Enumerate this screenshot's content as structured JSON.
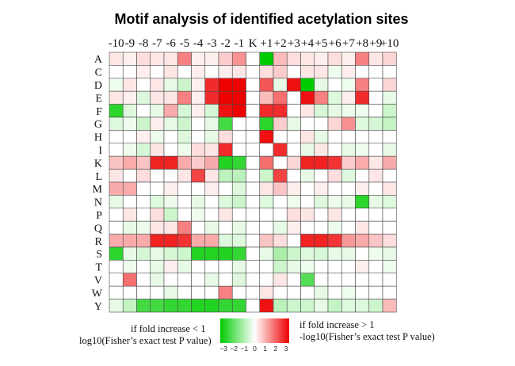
{
  "chart_data": {
    "type": "heatmap",
    "title": "Motif analysis of identified acetylation sites",
    "columns": [
      "-10",
      "-9",
      "-8",
      "-7",
      "-6",
      "-5",
      "-4",
      "-3",
      "-2",
      "-1",
      "K",
      "+1",
      "+2",
      "+3",
      "+4",
      "+5",
      "+6",
      "+7",
      "+8",
      "+9",
      "+10"
    ],
    "rows": [
      "A",
      "C",
      "D",
      "E",
      "F",
      "G",
      "H",
      "I",
      "K",
      "L",
      "M",
      "N",
      "P",
      "Q",
      "R",
      "S",
      "T",
      "V",
      "W",
      "Y"
    ],
    "values": [
      [
        0.3,
        0.2,
        0.4,
        0.3,
        0.3,
        1.5,
        0.2,
        0.2,
        0.6,
        1.3,
        null,
        -3.0,
        0.8,
        0.4,
        0.3,
        0.2,
        0.4,
        0.2,
        1.5,
        0.3,
        0.5
      ],
      [
        0.0,
        0.0,
        0.2,
        0.0,
        0.3,
        0.0,
        0.2,
        0.0,
        0.2,
        0.3,
        null,
        0.4,
        0.6,
        0.0,
        0.3,
        0.3,
        -0.2,
        0.2,
        0.0,
        0.0,
        0.0
      ],
      [
        -0.2,
        0.3,
        0.0,
        0.3,
        -0.3,
        -0.6,
        0.2,
        2.5,
        3.0,
        3.0,
        null,
        2.0,
        -0.3,
        2.8,
        -3.0,
        -0.3,
        0.0,
        -0.2,
        1.5,
        0.0,
        0.5
      ],
      [
        0.3,
        0.2,
        -0.4,
        0.3,
        0.3,
        1.5,
        0.2,
        2.5,
        3.0,
        3.0,
        null,
        0.8,
        1.7,
        0.0,
        2.8,
        1.5,
        -0.4,
        0.2,
        2.5,
        0.0,
        -0.3
      ],
      [
        -2.5,
        -0.4,
        0.0,
        -0.3,
        1.0,
        -0.5,
        0.2,
        -0.5,
        2.8,
        3.0,
        null,
        2.5,
        2.5,
        0.0,
        0.3,
        -0.5,
        -0.3,
        -0.2,
        -0.2,
        0.0,
        -0.6
      ],
      [
        -0.4,
        -0.2,
        -0.6,
        0.2,
        -0.3,
        -0.6,
        0.0,
        -0.3,
        -2.2,
        0.0,
        null,
        -2.5,
        0.6,
        -0.3,
        0.0,
        0.0,
        0.5,
        1.3,
        -0.4,
        -0.5,
        -0.7
      ],
      [
        0.0,
        0.0,
        0.2,
        -0.2,
        0.0,
        -0.4,
        0.0,
        -0.3,
        0.4,
        0.0,
        null,
        2.8,
        0.0,
        0.0,
        0.3,
        -0.3,
        0.0,
        0.0,
        0.0,
        0.0,
        0.0
      ],
      [
        0.0,
        -0.2,
        -0.5,
        0.3,
        0.0,
        -0.2,
        0.4,
        0.3,
        2.5,
        0.0,
        null,
        0.0,
        2.5,
        0.0,
        -0.3,
        0.3,
        0.0,
        -0.3,
        -0.2,
        0.0,
        -0.3
      ],
      [
        0.7,
        1.0,
        0.7,
        2.6,
        2.6,
        1.0,
        0.6,
        1.0,
        -2.6,
        -2.4,
        null,
        1.7,
        0.0,
        0.5,
        2.6,
        2.6,
        2.4,
        0.6,
        1.0,
        0.3,
        1.0
      ],
      [
        0.3,
        0.0,
        0.4,
        0.0,
        0.0,
        0.3,
        2.2,
        0.3,
        -0.8,
        -0.8,
        null,
        -0.6,
        2.2,
        0.0,
        -0.3,
        0.0,
        0.4,
        -0.4,
        0.0,
        0.3,
        0.0
      ],
      [
        1.0,
        1.0,
        0.0,
        0.0,
        0.2,
        0.0,
        0.0,
        0.2,
        0.0,
        -0.4,
        null,
        0.3,
        0.7,
        0.2,
        0.0,
        0.2,
        0.0,
        0.0,
        0.2,
        0.0,
        0.3
      ],
      [
        -0.3,
        0.0,
        0.0,
        -0.4,
        -0.2,
        0.0,
        -0.3,
        0.0,
        -0.4,
        -0.6,
        null,
        -0.4,
        0.0,
        -0.2,
        0.0,
        -0.4,
        -0.2,
        -0.3,
        -2.5,
        -0.3,
        -0.4
      ],
      [
        0.0,
        0.3,
        0.0,
        0.4,
        -0.6,
        0.0,
        -0.2,
        0.0,
        0.3,
        0.0,
        null,
        0.0,
        0.0,
        0.4,
        0.3,
        0.0,
        0.3,
        0.0,
        0.0,
        0.0,
        0.0
      ],
      [
        0.0,
        -0.3,
        -0.2,
        0.3,
        0.3,
        1.5,
        0.0,
        -0.3,
        0.0,
        -0.3,
        null,
        0.0,
        -0.3,
        0.2,
        0.0,
        0.0,
        -0.2,
        0.0,
        0.3,
        0.0,
        0.0
      ],
      [
        1.0,
        1.0,
        1.0,
        2.6,
        2.6,
        2.4,
        1.0,
        1.0,
        -0.4,
        -0.4,
        null,
        0.7,
        0.4,
        0.0,
        2.6,
        2.6,
        2.4,
        1.2,
        1.0,
        0.7,
        0.4
      ],
      [
        -2.5,
        -0.3,
        -0.5,
        -0.3,
        -0.5,
        -0.6,
        -2.6,
        -2.6,
        -2.6,
        -2.4,
        null,
        -0.3,
        -1.0,
        -0.6,
        -0.4,
        -0.5,
        -0.3,
        -0.3,
        0.0,
        -0.2,
        -0.3
      ],
      [
        0.0,
        -0.2,
        0.0,
        -0.3,
        0.2,
        -0.3,
        0.0,
        0.0,
        0.0,
        -0.3,
        null,
        0.0,
        -0.6,
        -0.3,
        -0.2,
        0.0,
        0.0,
        0.0,
        0.2,
        0.0,
        -0.2
      ],
      [
        0.0,
        1.7,
        0.0,
        -0.3,
        0.0,
        0.0,
        0.0,
        -0.3,
        0.0,
        -0.4,
        null,
        0.0,
        0.3,
        0.0,
        -2.0,
        0.0,
        0.0,
        0.0,
        0.0,
        0.0,
        0.0
      ],
      [
        0.0,
        0.0,
        0.0,
        0.0,
        -0.3,
        0.0,
        0.0,
        0.0,
        1.5,
        0.0,
        null,
        0.3,
        0.0,
        0.0,
        0.0,
        -0.3,
        0.0,
        -0.2,
        0.0,
        0.0,
        0.0
      ],
      [
        -0.3,
        -0.7,
        -2.2,
        -2.2,
        -2.4,
        -2.4,
        -2.6,
        -2.6,
        -2.4,
        -2.4,
        null,
        2.8,
        -0.8,
        -0.6,
        -0.6,
        -0.3,
        -0.7,
        -0.4,
        -0.4,
        -0.6,
        0.8
      ]
    ],
    "color_scale": {
      "min": -3,
      "max": 3,
      "ticks": [
        "−3",
        "−2",
        "−1",
        "0",
        "1",
        "2",
        "3"
      ],
      "low_color": "#00cc00",
      "mid_color": "#ffffff",
      "high_color": "#ee0000"
    },
    "legend_left": {
      "line1": "if fold increase < 1",
      "line2": "log10(Fisher’s exact test P value)"
    },
    "legend_right": {
      "line1": "if fold increase > 1",
      "line2": "-log10(Fisher’s exact test P value)"
    }
  }
}
